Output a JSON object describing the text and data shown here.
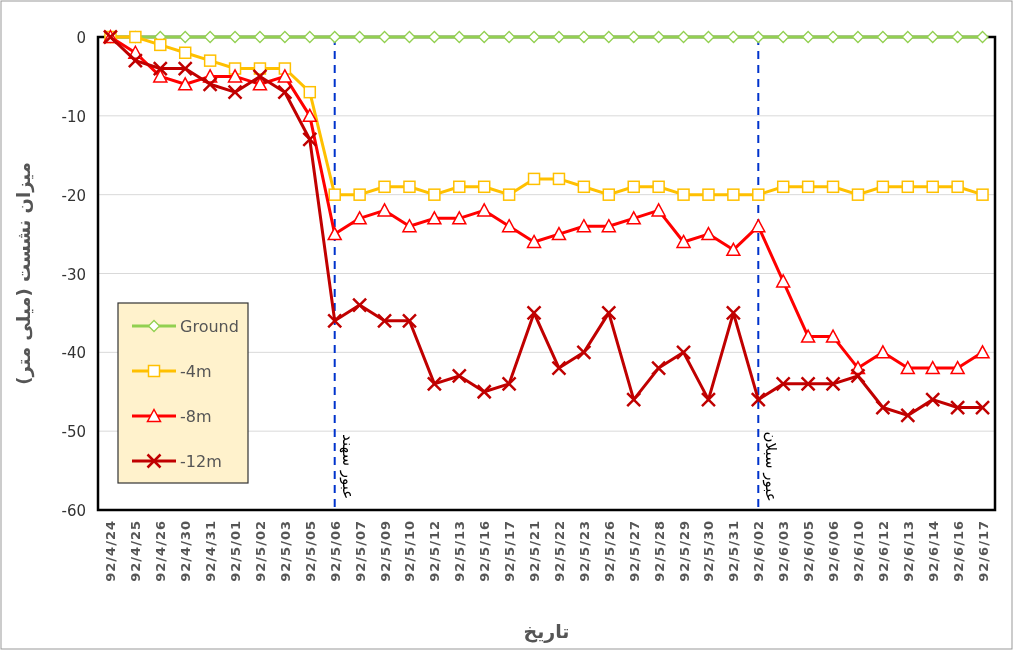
{
  "chart_data": {
    "type": "line",
    "xlabel": "تاریخ",
    "ylabel": "میزان نشست (میلی متر)",
    "categories": [
      "92/4/24",
      "92/4/25",
      "92/4/26",
      "92/4/30",
      "92/4/31",
      "92/5/01",
      "92/5/02",
      "92/5/03",
      "92/5/05",
      "92/5/06",
      "92/5/07",
      "92/5/09",
      "92/5/10",
      "92/5/12",
      "92/5/13",
      "92/5/16",
      "92/5/17",
      "92/5/21",
      "92/5/22",
      "92/5/23",
      "92/5/26",
      "92/5/27",
      "92/5/28",
      "92/5/29",
      "92/5/30",
      "92/5/31",
      "92/6/02",
      "92/6/03",
      "92/6/05",
      "92/6/06",
      "92/6/10",
      "92/6/12",
      "92/6/13",
      "92/6/14",
      "92/6/16",
      "92/6/17"
    ],
    "series": [
      {
        "name": "Ground",
        "color": "#92d050",
        "marker": "diamond",
        "values": [
          0,
          0,
          0,
          0,
          0,
          0,
          0,
          0,
          0,
          0,
          0,
          0,
          0,
          0,
          0,
          0,
          0,
          0,
          0,
          0,
          0,
          0,
          0,
          0,
          0,
          0,
          0,
          0,
          0,
          0,
          0,
          0,
          0,
          0,
          0,
          0
        ]
      },
      {
        "name": "-4m",
        "color": "#ffc000",
        "marker": "square",
        "values": [
          0,
          0,
          -1,
          -2,
          -3,
          -4,
          -4,
          -4,
          -7,
          -20,
          -20,
          -19,
          -19,
          -20,
          -19,
          -19,
          -20,
          -18,
          -18,
          -19,
          -20,
          -19,
          -19,
          -20,
          -20,
          -20,
          -20,
          -19,
          -19,
          -19,
          -20,
          -19,
          -19,
          -19,
          -19,
          -20
        ]
      },
      {
        "name": "-8m",
        "color": "#ff0000",
        "marker": "triangle",
        "values": [
          0,
          -2,
          -5,
          -6,
          -5,
          -5,
          -6,
          -5,
          -10,
          -25,
          -23,
          -22,
          -24,
          -23,
          -23,
          -22,
          -24,
          -26,
          -25,
          -24,
          -24,
          -23,
          -22,
          -26,
          -25,
          -27,
          -24,
          -31,
          -38,
          -38,
          -42,
          -40,
          -42,
          -42,
          -42,
          -40
        ]
      },
      {
        "name": "-12m",
        "color": "#c00000",
        "marker": "cross",
        "values": [
          0,
          -3,
          -4,
          -4,
          -6,
          -7,
          -5,
          -7,
          -13,
          -36,
          -34,
          -36,
          -36,
          -44,
          -43,
          -45,
          -44,
          -35,
          -42,
          -40,
          -35,
          -46,
          -42,
          -40,
          -46,
          -35,
          -46,
          -44,
          -44,
          -44,
          -43,
          -47,
          -48,
          -46,
          -47,
          -47
        ]
      }
    ],
    "ylim": [
      -60,
      0
    ],
    "yticks": [
      -60,
      -50,
      -40,
      -30,
      -20,
      -10,
      0
    ],
    "grid": "y",
    "legend": "bottom left",
    "ref_lines": [
      {
        "axis": "x",
        "value": "92/5/06",
        "label": "عبور سهند",
        "color": "#0033cc",
        "line_style": "dashed"
      },
      {
        "axis": "x",
        "value": "92/6/02",
        "label": "عبور سبلان",
        "color": "#0033cc",
        "line_style": "dashed"
      }
    ]
  }
}
